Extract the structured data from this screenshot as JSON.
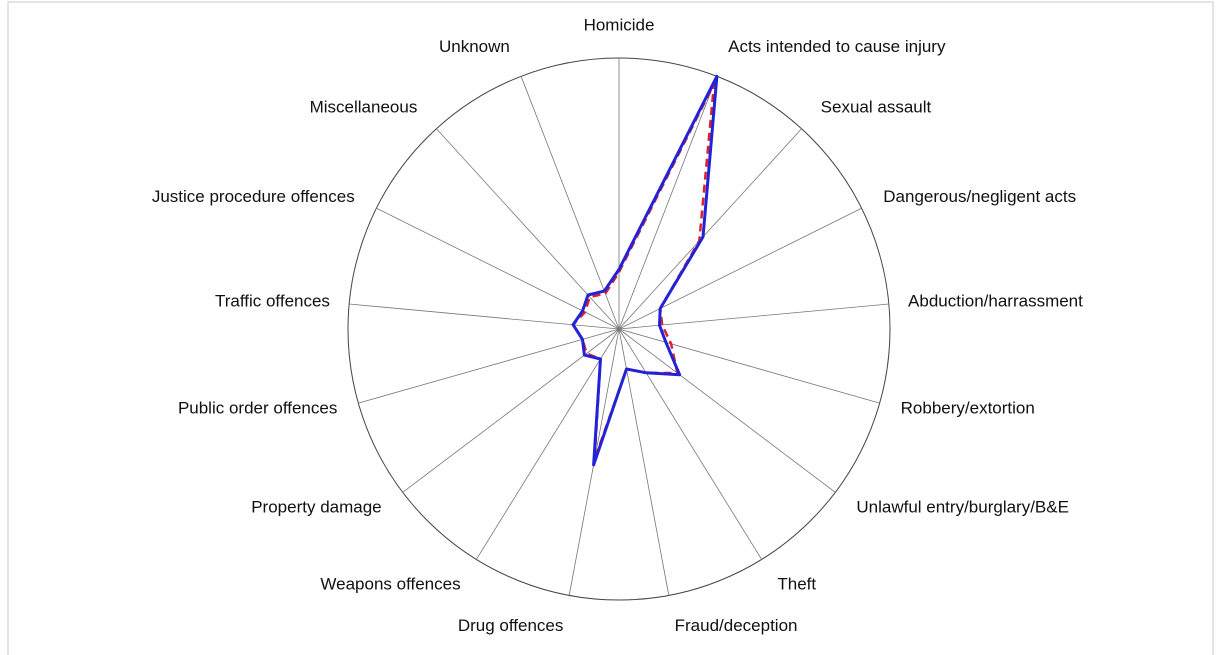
{
  "chart_data": {
    "type": "radar",
    "categories": [
      "Homicide",
      "Acts intended to cause injury",
      "Sexual assault",
      "Dangerous/negligent acts",
      "Abduction/harrassment",
      "Robbery/extortion",
      "Unlawful entry/burglary/B&E",
      "Theft",
      "Fraud/deception",
      "Drug offences",
      "Weapons offences",
      "Property damage",
      "Public order offences",
      "Traffic offences",
      "Justice procedure offences",
      "Miscellaneous",
      "Unknown"
    ],
    "series": [
      {
        "color": "#2222d6",
        "dash": false,
        "values": [
          22,
          100,
          46,
          17,
          15,
          18,
          28,
          19,
          15,
          51,
          13,
          16,
          14,
          17,
          15,
          17,
          15
        ]
      },
      {
        "color": "#e0202a",
        "dash": true,
        "values": [
          21,
          97,
          44,
          17,
          16,
          20,
          27,
          19,
          15,
          49,
          13,
          15,
          14,
          17,
          14,
          16,
          14
        ]
      }
    ],
    "ylim": [
      0,
      100
    ]
  }
}
